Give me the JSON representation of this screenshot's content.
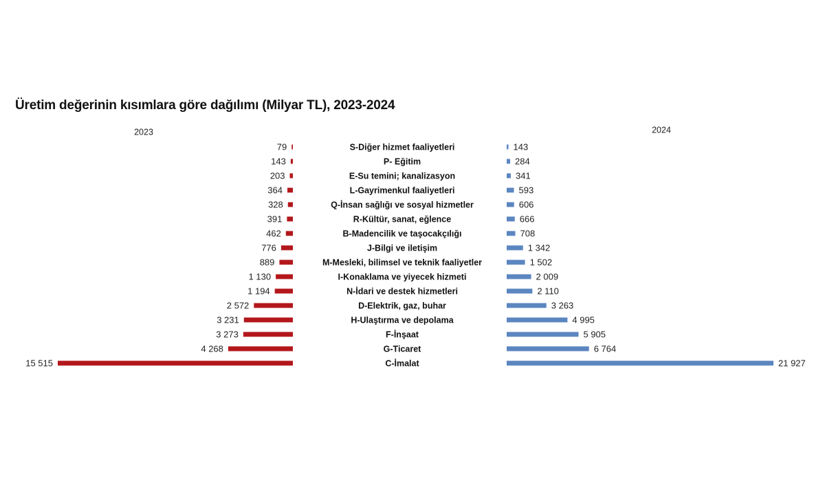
{
  "title": "Üretim değerinin kısımlara göre dağılımı (Milyar TL), 2023-2024",
  "colors": {
    "series_2023": "#b3171b",
    "series_2024": "#5b86c0"
  },
  "chart_data": {
    "type": "bar",
    "orientation": "horizontal-butterfly",
    "title": "Üretim değerinin kısımlara göre dağılımı (Milyar TL), 2023-2024",
    "categories": [
      "S-Diğer hizmet faaliyetleri",
      "P- Eğitim",
      "E-Su temini; kanalizasyon",
      "L-Gayrimenkul faaliyetleri",
      "Q-İnsan sağlığı ve sosyal hizmetler",
      "R-Kültür, sanat, eğlence",
      "B-Madencilik ve taşocakçılığı",
      "J-Bilgi ve iletişim",
      "M-Mesleki, bilimsel ve teknik faaliyetler",
      "I-Konaklama ve yiyecek hizmeti",
      "N-İdari ve destek hizmetleri",
      "D-Elektrik, gaz, buhar",
      "H-Ulaştırma ve depolama",
      "F-İnşaat",
      "G-Ticaret",
      "C-İmalat"
    ],
    "series": [
      {
        "name": "2023",
        "values": [
          79,
          143,
          203,
          364,
          328,
          391,
          462,
          776,
          889,
          1130,
          1194,
          2572,
          3231,
          3273,
          4268,
          15515
        ],
        "labels": [
          "79",
          "143",
          "203",
          "364",
          "328",
          "391",
          "462",
          "776",
          "889",
          "1 130",
          "1 194",
          "2 572",
          "3 231",
          "3 273",
          "4 268",
          "15 515"
        ]
      },
      {
        "name": "2024",
        "values": [
          143,
          284,
          341,
          593,
          606,
          666,
          708,
          1342,
          1502,
          2009,
          2110,
          3263,
          4995,
          5905,
          6764,
          21927
        ],
        "labels": [
          "143",
          "284",
          "341",
          "593",
          "606",
          "666",
          "708",
          "1 342",
          "1 502",
          "2 009",
          "2 110",
          "3 263",
          "4 995",
          "5 905",
          "6 764",
          "21 927"
        ]
      }
    ],
    "grid": false
  }
}
